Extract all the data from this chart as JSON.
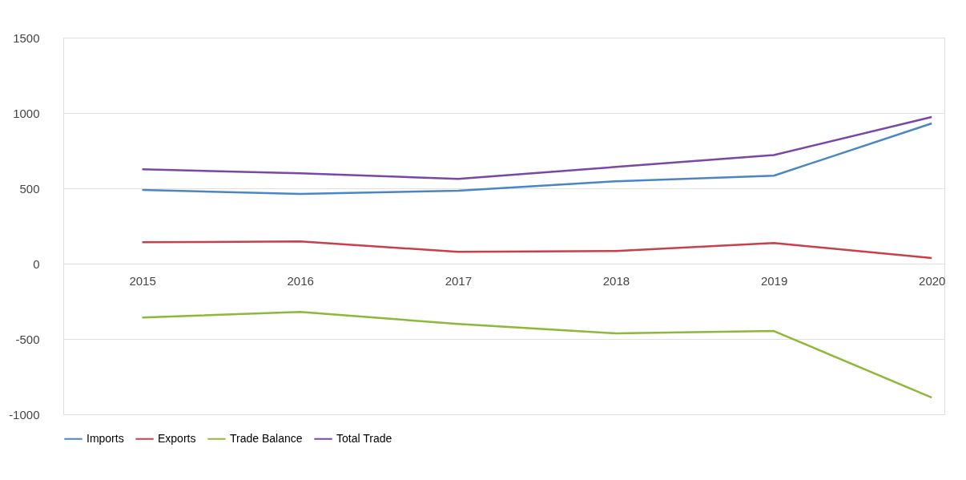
{
  "chart_data": {
    "type": "line",
    "categories": [
      "2015",
      "2016",
      "2017",
      "2018",
      "2019",
      "2020"
    ],
    "series": [
      {
        "name": "Imports",
        "color": "#4a86c5",
        "values": [
          489,
          463,
          484,
          547,
          584,
          931
        ]
      },
      {
        "name": "Exports",
        "color": "#c8404a",
        "values": [
          142,
          147,
          79,
          84,
          137,
          37
        ]
      },
      {
        "name": "Trade Balance",
        "color": "#8db838",
        "values": [
          -358,
          -321,
          -400,
          -463,
          -447,
          -889
        ]
      },
      {
        "name": "Total Trade",
        "color": "#7a47a8",
        "values": [
          626,
          600,
          563,
          642,
          721,
          973
        ]
      }
    ],
    "ylim": [
      -1000,
      1500
    ],
    "yticks": [
      -1000,
      -500,
      0,
      500,
      1000,
      1500
    ],
    "grid": "y",
    "legend": "bottom",
    "marker": "none",
    "line_style": "solid"
  }
}
